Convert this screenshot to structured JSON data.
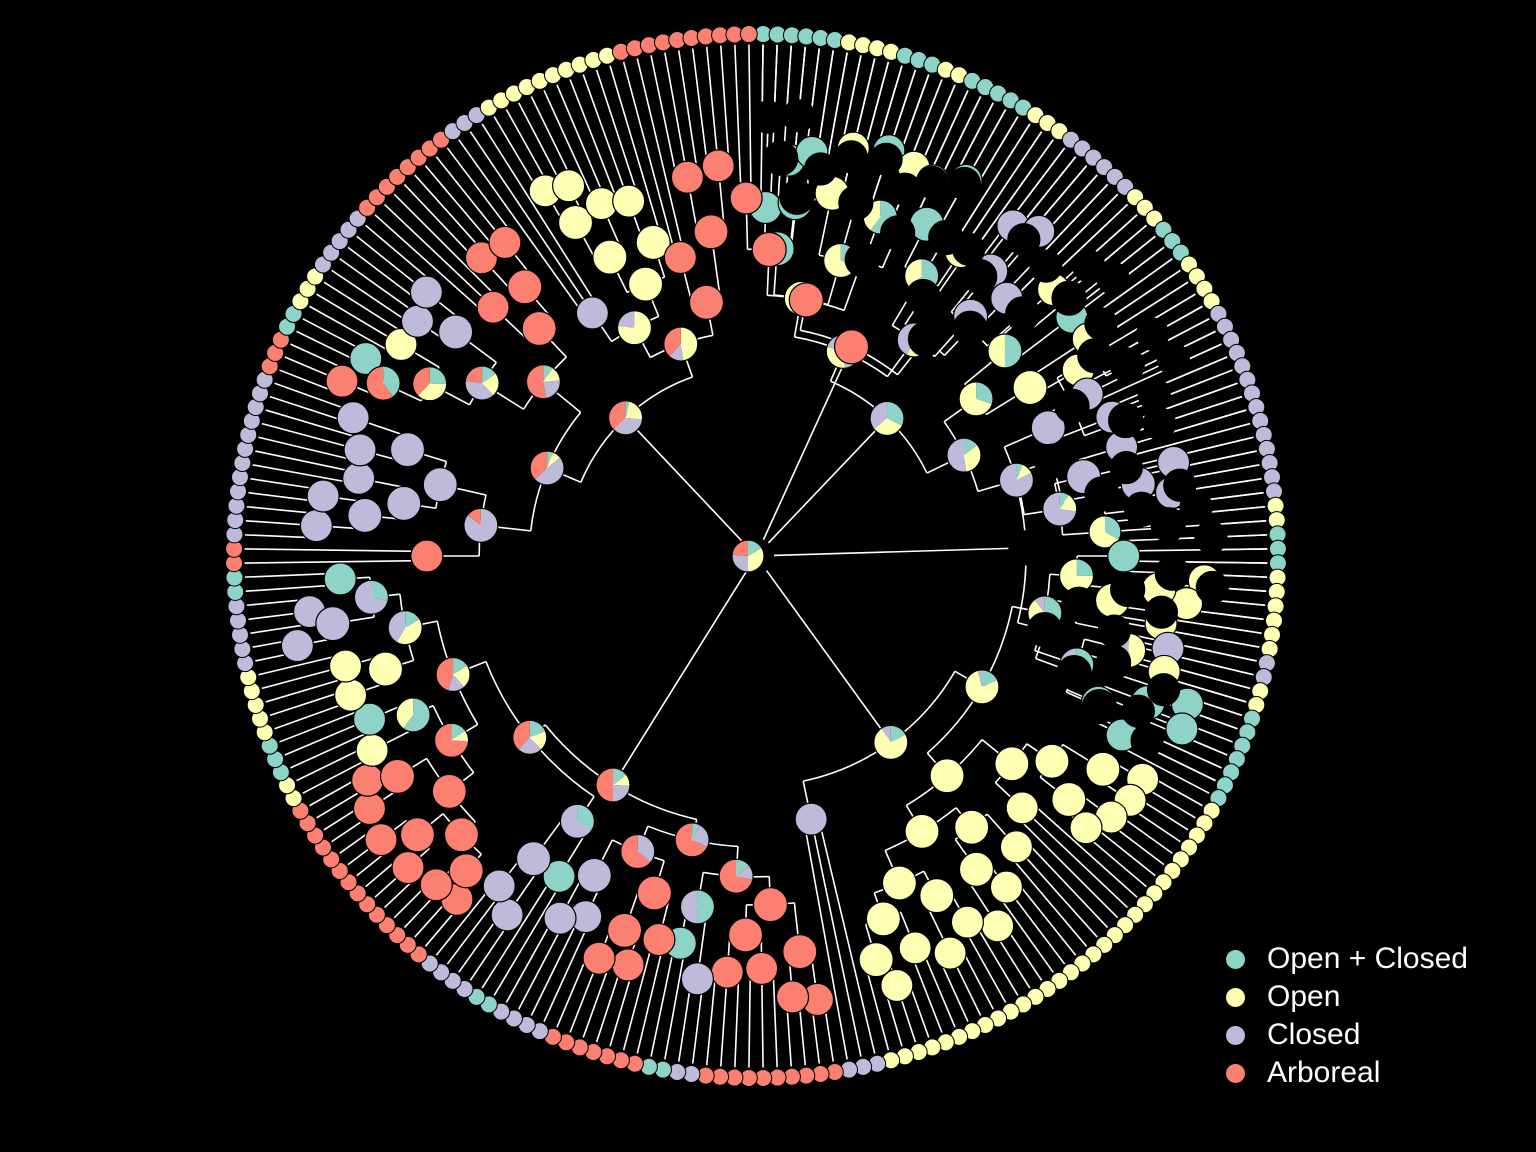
{
  "colors": {
    "background": "#000000",
    "branch": "#ffffff",
    "outline": "#000000"
  },
  "states": [
    {
      "key": "open_closed",
      "label": "Open + Closed",
      "color": "#8DD3C7"
    },
    {
      "key": "open",
      "label": "Open",
      "color": "#FFFFB3"
    },
    {
      "key": "closed",
      "label": "Closed",
      "color": "#BEBADA"
    },
    {
      "key": "arboreal",
      "label": "Arboreal",
      "color": "#FB8072"
    }
  ],
  "tree": {
    "type": "circular-phylogeny",
    "tip_state_runs_clockwise_from_top": [
      [
        "open_closed",
        6
      ],
      [
        "open",
        4
      ],
      [
        "open_closed",
        3
      ],
      [
        "open",
        2
      ],
      [
        "open_closed",
        5
      ],
      [
        "open",
        3
      ],
      [
        "closed",
        6
      ],
      [
        "open",
        3
      ],
      [
        "open_closed",
        3
      ],
      [
        "open",
        4
      ],
      [
        "closed",
        14
      ],
      [
        "open",
        2
      ],
      [
        "open_closed",
        3
      ],
      [
        "open",
        6
      ],
      [
        "closed",
        2
      ],
      [
        "open",
        2
      ],
      [
        "open_closed",
        7
      ],
      [
        "open",
        30
      ],
      [
        "closed",
        3
      ],
      [
        "arboreal",
        10
      ],
      [
        "closed",
        2
      ],
      [
        "open_closed",
        2
      ],
      [
        "arboreal",
        7
      ],
      [
        "closed",
        4
      ],
      [
        "open_closed",
        2
      ],
      [
        "closed",
        4
      ],
      [
        "arboreal",
        14
      ],
      [
        "open",
        2
      ],
      [
        "open_closed",
        3
      ],
      [
        "open",
        5
      ],
      [
        "closed",
        5
      ],
      [
        "open_closed",
        2
      ],
      [
        "arboreal",
        2
      ],
      [
        "closed",
        12
      ],
      [
        "arboreal",
        3
      ],
      [
        "open_closed",
        2
      ],
      [
        "open",
        3
      ],
      [
        "closed",
        5
      ],
      [
        "arboreal",
        8
      ],
      [
        "closed",
        3
      ],
      [
        "open",
        10
      ],
      [
        "arboreal",
        10
      ]
    ]
  },
  "legend": {
    "items": [
      {
        "label": "Open + Closed",
        "color": "#8DD3C7"
      },
      {
        "label": "Open",
        "color": "#FFFFB3"
      },
      {
        "label": "Closed",
        "color": "#BEBADA"
      },
      {
        "label": "Arboreal",
        "color": "#FB8072"
      }
    ]
  }
}
